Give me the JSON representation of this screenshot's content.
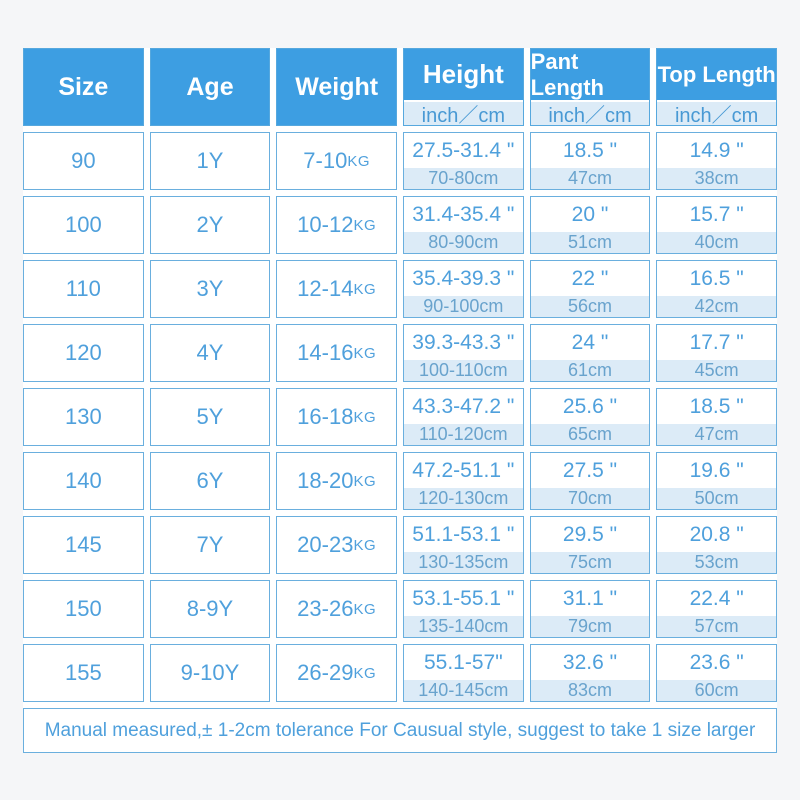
{
  "colors": {
    "header_blue": "#3D9EE2",
    "light_blue_bg": "#DCEBF7",
    "border_blue": "#6AAFDE",
    "value_text_blue": "#4FA0DC",
    "cm_text_blue": "#69A3CD",
    "page_bg": "#F5F6F8"
  },
  "chart_data": {
    "type": "table",
    "columns": [
      {
        "label": "Size",
        "sub": ""
      },
      {
        "label": "Age",
        "sub": ""
      },
      {
        "label": "Weight",
        "sub": ""
      },
      {
        "label": "Height",
        "sub": "inch／cm"
      },
      {
        "label": "Pant Length",
        "sub": "inch／cm"
      },
      {
        "label": "Top Length",
        "sub": "inch／cm"
      }
    ],
    "weight_unit": "KG",
    "rows": [
      {
        "size": "90",
        "age": "1Y",
        "weight": "7-10",
        "height_inch": "27.5-31.4 \"",
        "height_cm": "70-80cm",
        "pant_inch": "18.5 \"",
        "pant_cm": "47cm",
        "top_inch": "14.9 \"",
        "top_cm": "38cm"
      },
      {
        "size": "100",
        "age": "2Y",
        "weight": "10-12",
        "height_inch": "31.4-35.4 \"",
        "height_cm": "80-90cm",
        "pant_inch": "20 \"",
        "pant_cm": "51cm",
        "top_inch": "15.7 \"",
        "top_cm": "40cm"
      },
      {
        "size": "110",
        "age": "3Y",
        "weight": "12-14",
        "height_inch": "35.4-39.3 \"",
        "height_cm": "90-100cm",
        "pant_inch": "22 \"",
        "pant_cm": "56cm",
        "top_inch": "16.5 \"",
        "top_cm": "42cm"
      },
      {
        "size": "120",
        "age": "4Y",
        "weight": "14-16",
        "height_inch": "39.3-43.3 \"",
        "height_cm": "100-110cm",
        "pant_inch": "24 \"",
        "pant_cm": "61cm",
        "top_inch": "17.7 \"",
        "top_cm": "45cm"
      },
      {
        "size": "130",
        "age": "5Y",
        "weight": "16-18",
        "height_inch": "43.3-47.2 \"",
        "height_cm": "110-120cm",
        "pant_inch": "25.6 \"",
        "pant_cm": "65cm",
        "top_inch": "18.5 \"",
        "top_cm": "47cm"
      },
      {
        "size": "140",
        "age": "6Y",
        "weight": "18-20",
        "height_inch": "47.2-51.1 \"",
        "height_cm": "120-130cm",
        "pant_inch": "27.5 \"",
        "pant_cm": "70cm",
        "top_inch": "19.6 \"",
        "top_cm": "50cm"
      },
      {
        "size": "145",
        "age": "7Y",
        "weight": "20-23",
        "height_inch": "51.1-53.1 \"",
        "height_cm": "130-135cm",
        "pant_inch": "29.5 \"",
        "pant_cm": "75cm",
        "top_inch": "20.8 \"",
        "top_cm": "53cm"
      },
      {
        "size": "150",
        "age": "8-9Y",
        "weight": "23-26",
        "height_inch": "53.1-55.1 \"",
        "height_cm": "135-140cm",
        "pant_inch": "31.1 \"",
        "pant_cm": "79cm",
        "top_inch": "22.4 \"",
        "top_cm": "57cm"
      },
      {
        "size": "155",
        "age": "9-10Y",
        "weight": "26-29",
        "height_inch": "55.1-57\"",
        "height_cm": "140-145cm",
        "pant_inch": "32.6 \"",
        "pant_cm": "83cm",
        "top_inch": "23.6 \"",
        "top_cm": "60cm"
      }
    ],
    "footer_note": "Manual measured,± 1-2cm tolerance For Causual style, suggest to take 1 size larger"
  }
}
